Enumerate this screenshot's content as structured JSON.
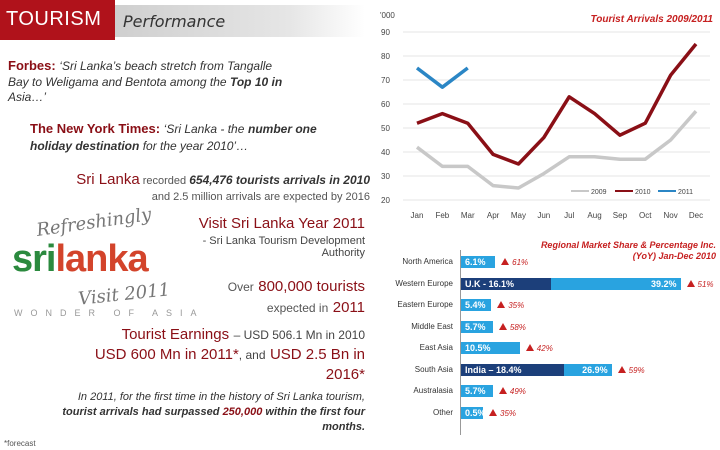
{
  "header": {
    "title": "TOURISM",
    "subtitle": "Performance"
  },
  "quotes": {
    "forbes_source": "Forbes:",
    "forbes_text_1": "‘Sri Lanka’s beach stretch from Tangalle",
    "forbes_text_2": "Bay to Weligama and Bentota among the",
    "forbes_bold": "Top 10 in",
    "forbes_text_3": "Asia…’",
    "nyt_source": "The New York Times:",
    "nyt_text_1": "‘Sri Lanka - the",
    "nyt_bold_1": "number one",
    "nyt_bold_2": "holiday destination",
    "nyt_text_2": "for the year 2010’…"
  },
  "stats": {
    "sl_label": "Sri Lanka",
    "sl_text_1": "recorded",
    "sl_value": "654,476 tourists arrivals in 2010",
    "sl_text_2": "and 2.5 million arrivals are expected by 2016",
    "visit_title": "Visit Sri Lanka Year 2011",
    "visit_src_1": "- Sri Lanka Tourism Development",
    "visit_src_2": "Authority",
    "over_text": "Over",
    "over_value": "800,000 tourists",
    "exp_text": "expected in",
    "exp_year": "2011",
    "earn_title": "Tourist Earnings",
    "earn_text": "– USD 506.1 Mn in 2010",
    "earn_line2a": "USD 600 Mn in 2011*",
    "earn_and": ", and",
    "earn_line2b": "USD 2.5 Bn in",
    "earn_line3": "2016*",
    "hist_1": "In 2011, for the first time in the history of Sri Lanka tourism,",
    "hist_2a": "tourist arrivals had surpassed",
    "hist_2b": "250,000",
    "hist_2c": "within the first four",
    "hist_3": "months.",
    "footnote": "*forecast"
  },
  "logo": {
    "top": "Refreshingly",
    "word1": "sri",
    "word2": "lanka",
    "year": "Visit 2011",
    "tagline": "WONDER OF ASIA"
  },
  "colors": {
    "brand_red": "#b0121b",
    "dark_red": "#8a0f16",
    "bar_light": "#29a3e0",
    "bar_dark": "#1c3f7a",
    "line_2009": "#c8c8c8",
    "line_2010": "#8a0f16",
    "line_2011": "#2b86c5"
  },
  "chart_data": [
    {
      "type": "line",
      "title": "Tourist Arrivals 2009/2011",
      "ylabel": "'000",
      "ylim": [
        20,
        90
      ],
      "yticks": [
        "90",
        "80",
        "70",
        "60",
        "50",
        "40",
        "30",
        "20"
      ],
      "categories": [
        "Jan",
        "Feb",
        "Mar",
        "Apr",
        "May",
        "Jun",
        "Jul",
        "Aug",
        "Sep",
        "Oct",
        "Nov",
        "Dec"
      ],
      "series": [
        {
          "name": "2009",
          "values": [
            42,
            34,
            34,
            26,
            25,
            31,
            38,
            38,
            37,
            37,
            45,
            57
          ]
        },
        {
          "name": "2010",
          "values": [
            52,
            56,
            52,
            39,
            35,
            46,
            63,
            56,
            47,
            52,
            72,
            85
          ]
        },
        {
          "name": "2011",
          "values": [
            75,
            67,
            75,
            null,
            null,
            null,
            null,
            null,
            null,
            null,
            null,
            null
          ]
        }
      ],
      "legend_position": "bottom-right",
      "grid": true
    },
    {
      "type": "bar",
      "title": "Regional Market Share & Percentage Inc. (YoY) Jan-Dec 2010",
      "categories": [
        "North America",
        "Western Europe",
        "Eastern Europe",
        "Middle East",
        "East Asia",
        "South Asia",
        "Australasia",
        "Other"
      ],
      "share_labels": [
        "6.1%",
        "39.2%",
        "5.4%",
        "5.7%",
        "10.5%",
        "26.9%",
        "5.7%",
        "0.5%"
      ],
      "share_values": [
        6.1,
        39.2,
        5.4,
        5.7,
        10.5,
        26.9,
        5.7,
        0.5
      ],
      "increase_labels": [
        "61%",
        "51%",
        "35%",
        "58%",
        "42%",
        "59%",
        "49%",
        "35%"
      ],
      "sub_labels": [
        {
          "category": "Western Europe",
          "label": "U.K - 16.1%",
          "value": 16.1
        },
        {
          "category": "South Asia",
          "label": "India – 18.4%",
          "value": 18.4
        }
      ]
    }
  ]
}
